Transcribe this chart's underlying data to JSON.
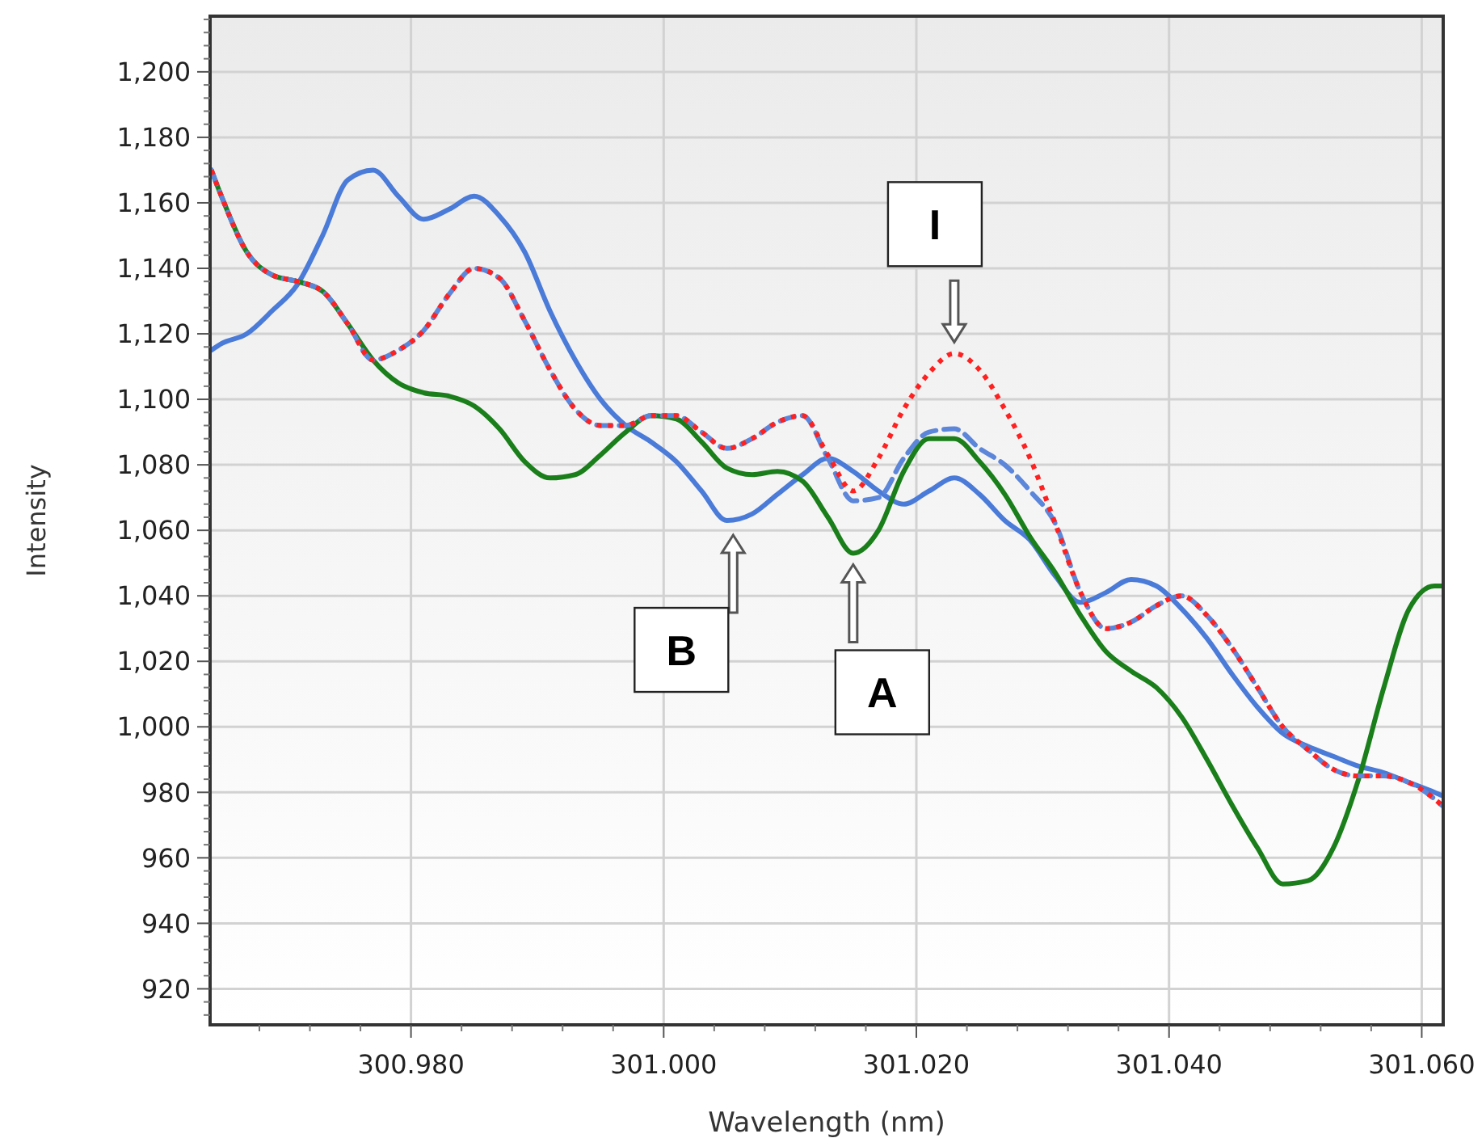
{
  "chart_data": {
    "type": "line",
    "xlabel": "Wavelength (nm)",
    "ylabel": "Intensity",
    "x": [
      300.9642,
      300.965,
      300.967,
      300.969,
      300.971,
      300.973,
      300.975,
      300.977,
      300.979,
      300.981,
      300.983,
      300.985,
      300.987,
      300.989,
      300.991,
      300.993,
      300.995,
      300.997,
      300.999,
      301.001,
      301.003,
      301.005,
      301.007,
      301.009,
      301.011,
      301.013,
      301.015,
      301.017,
      301.019,
      301.021,
      301.023,
      301.025,
      301.027,
      301.029,
      301.031,
      301.033,
      301.035,
      301.037,
      301.039,
      301.041,
      301.043,
      301.045,
      301.047,
      301.049,
      301.051,
      301.053,
      301.055,
      301.057,
      301.059,
      301.061,
      301.0616
    ],
    "series": [
      {
        "color": "#4a7bd8",
        "line_style": "solid",
        "values": [
          1115,
          1117,
          1120,
          1127,
          1135,
          1150,
          1167,
          1170,
          1162,
          1155,
          1158,
          1162,
          1156,
          1145,
          1127,
          1112,
          1100,
          1092,
          1087,
          1081,
          1072,
          1063,
          1065,
          1071,
          1077,
          1082,
          1078,
          1072,
          1068,
          1072,
          1076,
          1071,
          1063,
          1057,
          1046,
          1038,
          1041,
          1045,
          1043,
          1036,
          1027,
          1016,
          1006,
          998,
          994,
          991,
          988,
          986,
          983,
          980,
          979
        ]
      },
      {
        "color": "#1a7f1a",
        "line_style": "solid",
        "values": [
          1170,
          1162,
          1145,
          1138,
          1136,
          1133,
          1123,
          1112,
          1105,
          1102,
          1101,
          1098,
          1091,
          1081,
          1076,
          1077,
          1083,
          1090,
          1095,
          1094,
          1087,
          1079,
          1077,
          1078,
          1075,
          1064,
          1053,
          1060,
          1078,
          1088,
          1088,
          1081,
          1071,
          1058,
          1047,
          1034,
          1023,
          1017,
          1012,
          1003,
          990,
          976,
          963,
          952,
          953,
          963,
          984,
          1012,
          1036,
          1043,
          1043
        ]
      },
      {
        "color": "#5b86d9",
        "line_style": "dashed",
        "values": [
          1170,
          1162,
          1145,
          1138,
          1136,
          1133,
          1123,
          1112,
          1115,
          1121,
          1132,
          1140,
          1137,
          1124,
          1109,
          1097,
          1092,
          1092,
          1095,
          1095,
          1090,
          1085,
          1088,
          1093,
          1095,
          1082,
          1069,
          1070,
          1082,
          1090,
          1091,
          1085,
          1080,
          1072,
          1062,
          1041,
          1030,
          1032,
          1037,
          1040,
          1034,
          1024,
          1012,
          1000,
          993,
          987,
          985,
          985,
          983,
          978,
          976
        ]
      },
      {
        "color": "#ff2020",
        "line_style": "dotted",
        "values": [
          1170,
          1162,
          1145,
          1138,
          1136,
          1133,
          1123,
          1112,
          1115,
          1121,
          1132,
          1140,
          1137,
          1124,
          1109,
          1097,
          1092,
          1092,
          1095,
          1095,
          1090,
          1085,
          1088,
          1093,
          1095,
          1083,
          1072,
          1082,
          1097,
          1108,
          1114,
          1109,
          1097,
          1082,
          1062,
          1041,
          1030,
          1032,
          1037,
          1040,
          1034,
          1024,
          1012,
          1000,
          993,
          987,
          985,
          985,
          983,
          978,
          976
        ]
      }
    ],
    "xlim": [
      300.9641,
      301.0617
    ],
    "ylim": [
      909,
      1217
    ],
    "xticks": [
      {
        "value": 300.98,
        "label": "300.980"
      },
      {
        "value": 301.0,
        "label": "301.000"
      },
      {
        "value": 301.02,
        "label": "301.020"
      },
      {
        "value": 301.04,
        "label": "301.040"
      },
      {
        "value": 301.06,
        "label": "301.060"
      }
    ],
    "yticks": [
      920,
      940,
      960,
      980,
      {
        "value": 1000,
        "label": "1,000"
      },
      {
        "value": 1020,
        "label": "1,020"
      },
      {
        "value": 1040,
        "label": "1,040"
      },
      {
        "value": 1060,
        "label": "1,060"
      },
      {
        "value": 1080,
        "label": "1,080"
      },
      {
        "value": 1100,
        "label": "1,100"
      },
      {
        "value": 1120,
        "label": "1,120"
      },
      {
        "value": 1140,
        "label": "1,140"
      },
      {
        "value": 1160,
        "label": "1,160"
      },
      {
        "value": 1180,
        "label": "1,180"
      },
      {
        "value": 1200,
        "label": "1,200"
      }
    ],
    "annotations": [
      {
        "text": "I",
        "x": 301.023,
        "y": 1114
      },
      {
        "text": "B",
        "x": 301.0055,
        "y": 1062
      },
      {
        "text": "A",
        "x": 301.015,
        "y": 1053
      }
    ],
    "grid": true
  }
}
